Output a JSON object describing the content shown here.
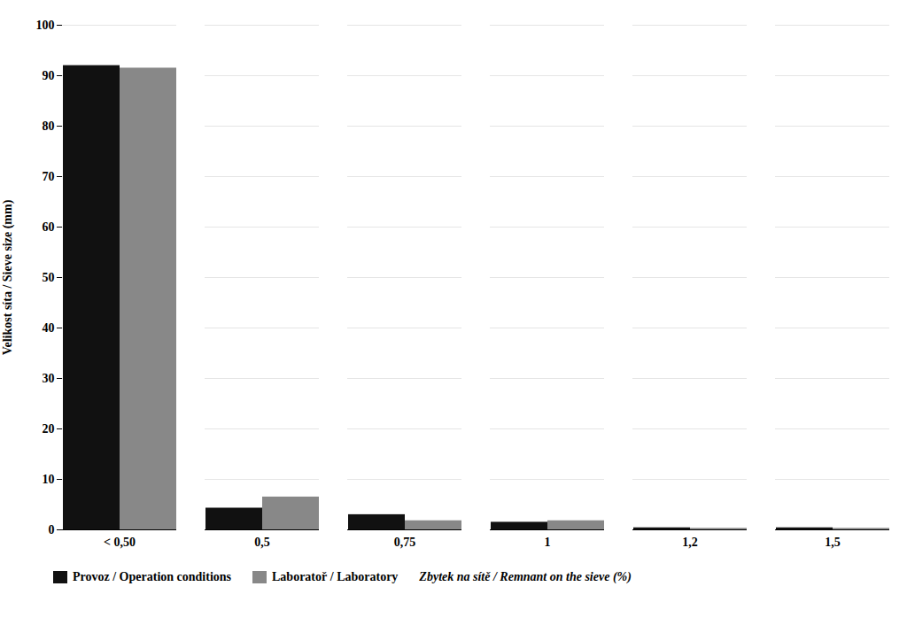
{
  "chart_data": {
    "type": "bar",
    "categories": [
      "< 0,50",
      "0,5",
      "0,75",
      "1",
      "1,2",
      "1,5"
    ],
    "series": [
      {
        "name": "Provoz / Operation conditions",
        "color": "#111111",
        "values": [
          92,
          4.3,
          3.0,
          1.5,
          0.4,
          0.4
        ]
      },
      {
        "name": "Laboratoř / Laboratory",
        "color": "#888888",
        "values": [
          91.5,
          6.5,
          1.8,
          1.8,
          0.3,
          0.3
        ]
      }
    ],
    "ylabel": "Velikost síta / Sieve size (mm)",
    "annotations": [
      "Zbytek na sítě / Remnant on the sieve (%)"
    ],
    "ylim": [
      0,
      100
    ],
    "yticks": [
      0,
      10,
      20,
      30,
      40,
      50,
      60,
      70,
      80,
      90,
      100
    ],
    "grid": true,
    "legend": "bottom"
  }
}
